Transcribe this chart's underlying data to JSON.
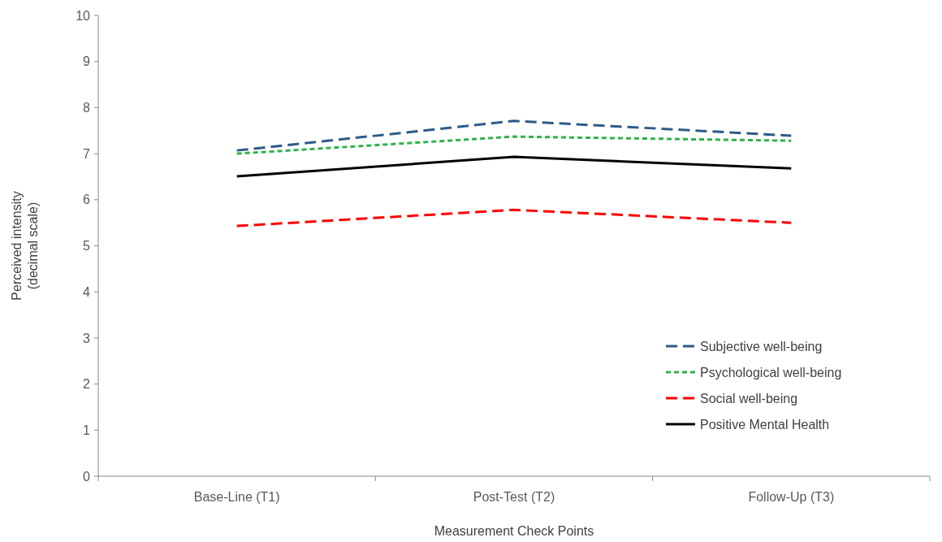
{
  "chart_data": {
    "type": "line",
    "xlabel": "Measurement Check Points",
    "ylabel": "Perceived intensity (decimal scale)",
    "categories": [
      "Base-Line (T1)",
      "Post-Test (T2)",
      "Follow-Up (T3)"
    ],
    "series": [
      {
        "name": "Subjective well-being",
        "color": "#2e5b8a",
        "line_style": "dashed",
        "values": [
          7.07,
          7.71,
          7.39
        ]
      },
      {
        "name": "Psychological well-being",
        "color": "#2db34a",
        "line_style": "dotted",
        "values": [
          7.0,
          7.37,
          7.28
        ]
      },
      {
        "name": "Social well-being",
        "color": "#ff0000",
        "line_style": "dashed",
        "values": [
          5.43,
          5.78,
          5.5
        ]
      },
      {
        "name": "Positive Mental Health",
        "color": "#000000",
        "line_style": "solid",
        "values": [
          6.51,
          6.93,
          6.68
        ]
      }
    ],
    "ylim": [
      0,
      10
    ],
    "yticks": [
      0,
      1,
      2,
      3,
      4,
      5,
      6,
      7,
      8,
      9,
      10
    ],
    "grid": false,
    "legend": "bottom right",
    "marker": "none"
  }
}
